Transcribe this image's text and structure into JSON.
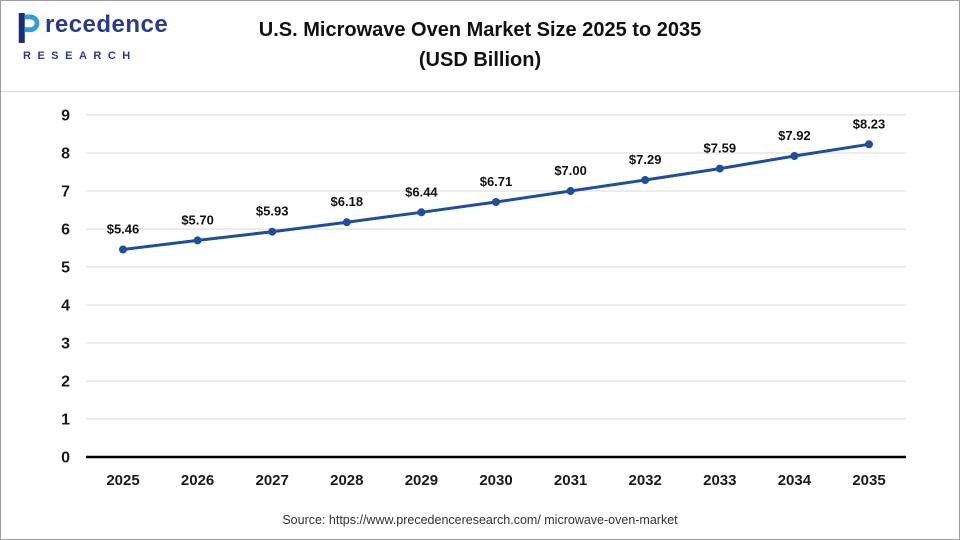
{
  "page": {
    "title_line1": "U.S. Microwave Oven Market Size 2025 to 2035",
    "title_line2": "(USD Billion)",
    "source": "Source: https://www.precedenceresearch.com/ microwave-oven-market"
  },
  "logo": {
    "word_rest": "recedence",
    "subtext": "RESEARCH",
    "brand_blue": "#2b3990",
    "p_bar_color": "#1e2d78",
    "p_bowl_color": "#2f9fda"
  },
  "chart_data": {
    "type": "line",
    "title": "U.S. Microwave Oven Market Size 2025 to 2035 (USD Billion)",
    "categories": [
      "2025",
      "2026",
      "2027",
      "2028",
      "2029",
      "2030",
      "2031",
      "2032",
      "2033",
      "2034",
      "2035"
    ],
    "values": [
      5.46,
      5.7,
      5.93,
      6.18,
      6.44,
      6.71,
      7.0,
      7.29,
      7.59,
      7.92,
      8.23
    ],
    "data_labels": [
      "$5.46",
      "$5.70",
      "$5.93",
      "$6.18",
      "$6.44",
      "$6.71",
      "$7.00",
      "$7.29",
      "$7.59",
      "$7.92",
      "$8.23"
    ],
    "xlabel": "",
    "ylabel": "",
    "ylim": [
      0,
      9
    ],
    "ytick_step": 1,
    "grid": true,
    "legend": "none",
    "line_color": "#1f4e9e",
    "marker_color": "#1f4e9e",
    "gridline_color": "#d9d9d9",
    "axis_color": "#000000"
  }
}
